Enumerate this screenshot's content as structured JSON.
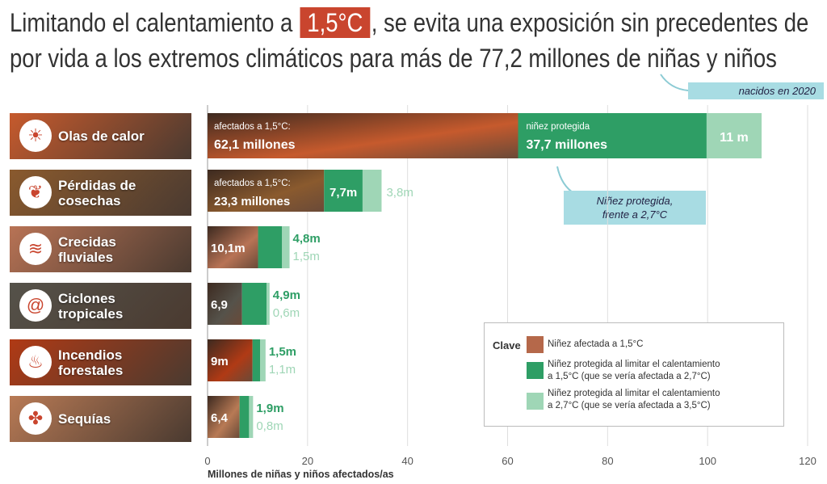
{
  "title": {
    "part1": "Limitando el calentamiento a",
    "badge": "1,5°C",
    "part2": ", se evita una exposición sin precedentes de",
    "line2": "por vida a los extremos climáticos para más de 77,2 millones de niñas y niños"
  },
  "annotations": {
    "born": "nacidos en 2020",
    "protected_line1": "Niñez protegida,",
    "protected_line2": "frente a 2,7°C"
  },
  "rows": [
    {
      "label1": "Olas de calor",
      "label2": "",
      "icon": "heat-wave-icon"
    },
    {
      "label1": "Pérdidas de",
      "label2": "cosechas",
      "icon": "crop-icon"
    },
    {
      "label1": "Crecidas",
      "label2": "fluviales",
      "icon": "flood-icon"
    },
    {
      "label1": "Ciclones",
      "label2": "tropicales",
      "icon": "cyclone-icon"
    },
    {
      "label1": "Incendios",
      "label2": "forestales",
      "icon": "fire-icon"
    },
    {
      "label1": "Sequías",
      "label2": "",
      "icon": "drought-icon"
    }
  ],
  "key": {
    "title": "Clave",
    "item1": "Niñez afectada a 1,5°C",
    "item2a": "Niñez protegida al limitar el calentamiento",
    "item2b": "a 1,5°C (que se vería afectada a 2,7°C)",
    "item3a": "Niñez protegida al limitar el calentamiento",
    "item3b": "a 2,7°C (que se vería afectada a 3,5°C)"
  },
  "colors": {
    "affected": "#b5684a",
    "protected27": "#2e9e65",
    "protected35": "#9fd6b6",
    "accent": "#c9452e",
    "label_bg": [
      "#c65a2d",
      "#8a5a2e",
      "#b87355",
      "#55524a",
      "#b03a15",
      "#b87a55"
    ]
  },
  "chart_data": {
    "type": "bar",
    "orientation": "horizontal",
    "stacked": true,
    "categories": [
      "Olas de calor",
      "Pérdidas de cosechas",
      "Crecidas fluviales",
      "Ciclones tropicales",
      "Incendios forestales",
      "Sequías"
    ],
    "series": [
      {
        "name": "Niñez afectada a 1,5°C",
        "values": [
          62.1,
          23.3,
          10.1,
          6.9,
          9,
          6.4
        ]
      },
      {
        "name": "Niñez protegida al limitar el calentamiento a 1,5°C (que se vería afectada a 2,7°C)",
        "values": [
          37.7,
          7.7,
          4.8,
          4.9,
          1.5,
          1.9
        ]
      },
      {
        "name": "Niñez protegida al limitar el calentamiento a 2,7°C (que se vería afectada a 3,5°C)",
        "values": [
          11,
          3.8,
          1.5,
          0.6,
          1.1,
          0.8
        ]
      }
    ],
    "bar_labels": {
      "affected": [
        "62,1 millones",
        "23,3 millones",
        "10,1m",
        "6,9",
        "9m",
        "6,4"
      ],
      "protected27": [
        "37,7 millones",
        "7,7m",
        "4,8m",
        "4,9m",
        "1,5m",
        "1,9m"
      ],
      "protected35": [
        "11 m",
        "3,8m",
        "1,5m",
        "0,6m",
        "1,1m",
        "0,8m"
      ]
    },
    "prefix_affected": "afectados a 1,5°C:",
    "prefix_protected": "niñez protegida",
    "xlim": [
      0,
      120
    ],
    "xticks": [
      "0",
      "20",
      "40",
      "60",
      "80",
      "100",
      "120"
    ],
    "xlabel": "Millones de niñas y niños afectados/as",
    "grid": true
  }
}
